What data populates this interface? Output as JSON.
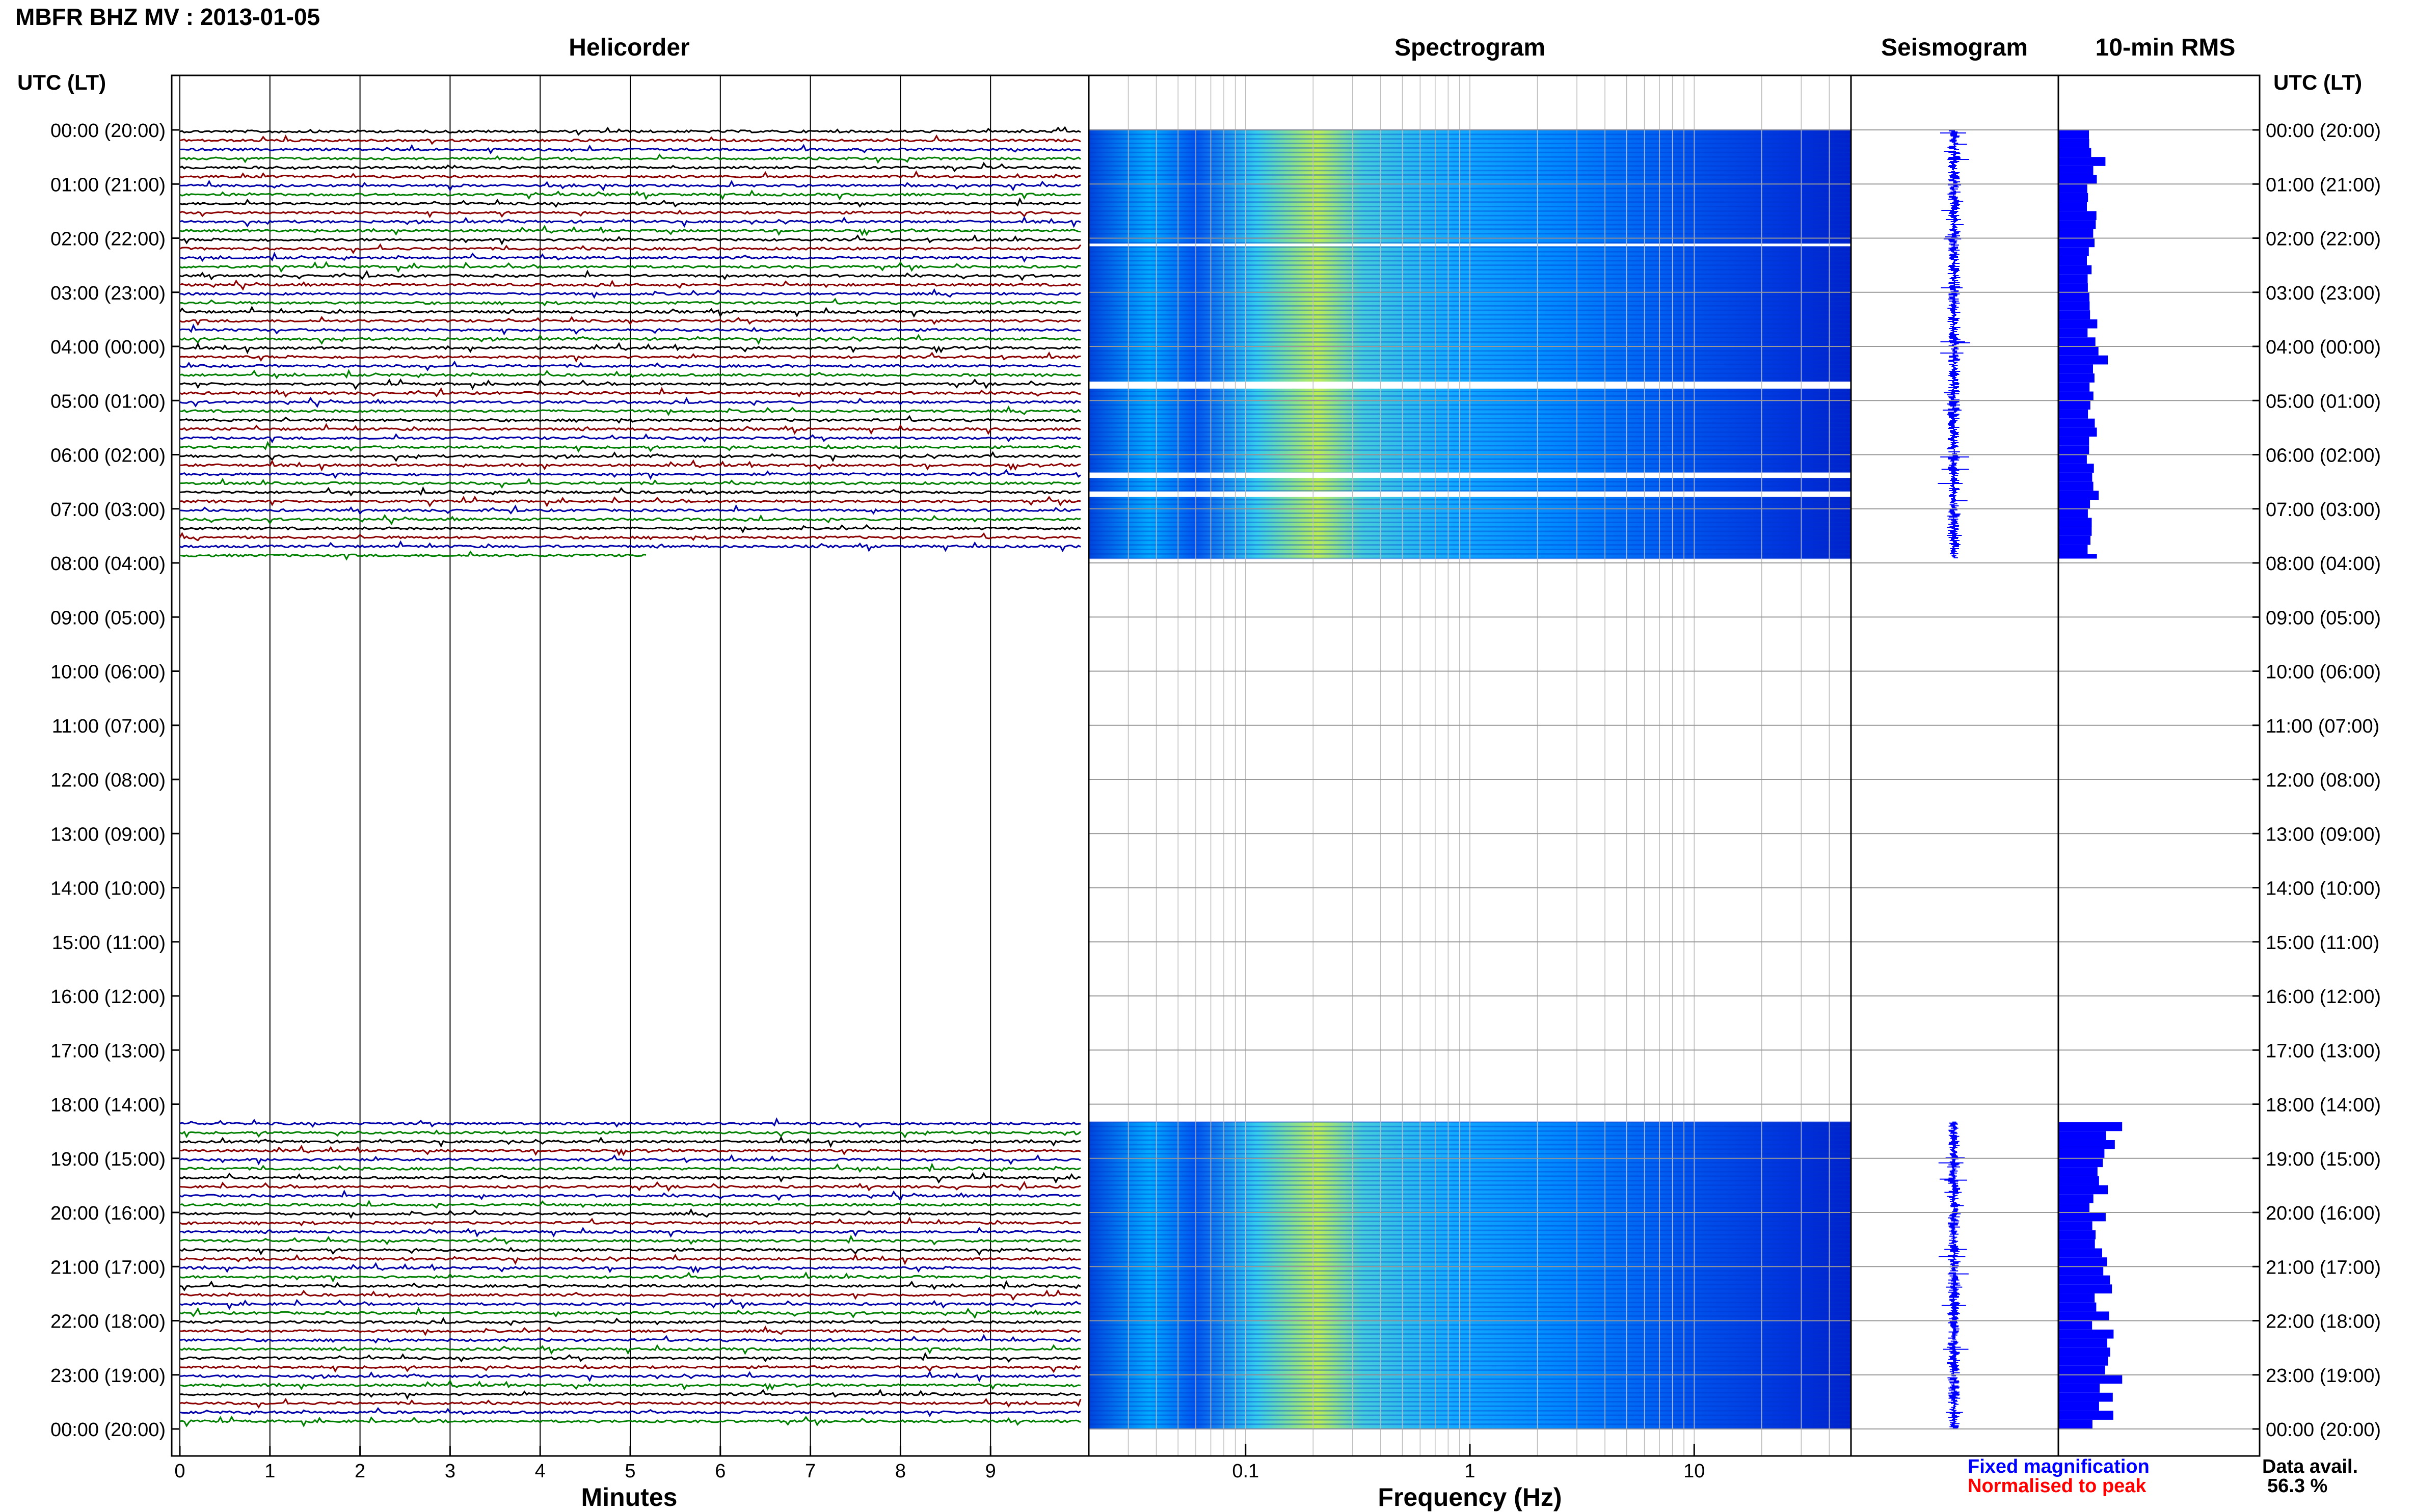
{
  "title": "MBFR BHZ MV : 2013-01-05",
  "panels": {
    "helicorder": "Helicorder",
    "spectrogram": "Spectrogram",
    "seismogram": "Seismogram",
    "rms": "10-min RMS"
  },
  "axis_header": "UTC (LT)",
  "legend": {
    "fixed": "Fixed magnification",
    "fixed_color": "#0000ff",
    "normalised": "Normalised to peak",
    "normalised_color": "#ff0000",
    "avail_label": "Data avail.",
    "avail_value": "56.3 %"
  },
  "chart_data": {
    "type": "helicorder",
    "time_labels": [
      "00:00 (20:00)",
      "01:00 (21:00)",
      "02:00 (22:00)",
      "03:00 (23:00)",
      "04:00 (00:00)",
      "05:00 (01:00)",
      "06:00 (02:00)",
      "07:00 (03:00)",
      "08:00 (04:00)",
      "09:00 (05:00)",
      "10:00 (06:00)",
      "11:00 (07:00)",
      "12:00 (08:00)",
      "13:00 (09:00)",
      "14:00 (10:00)",
      "15:00 (11:00)",
      "16:00 (12:00)",
      "17:00 (13:00)",
      "18:00 (14:00)",
      "19:00 (15:00)",
      "20:00 (16:00)",
      "21:00 (17:00)",
      "22:00 (18:00)",
      "23:00 (19:00)",
      "00:00 (20:00)"
    ],
    "helicorder": {
      "xlabel": "Minutes",
      "xticks": [
        0,
        1,
        2,
        3,
        4,
        5,
        6,
        7,
        8,
        9
      ],
      "xlim": [
        0,
        10
      ],
      "trace_colors": [
        "#000000",
        "#8b0000",
        "#0000aa",
        "#008000"
      ],
      "data_segments_hours": [
        [
          0.0,
          7.92
        ],
        [
          18.33,
          24.0
        ]
      ]
    },
    "spectrogram": {
      "xlabel": "Frequency (Hz)",
      "xscale": "log",
      "xlim": [
        0.02,
        50
      ],
      "xticks": [
        0.1,
        1,
        10
      ],
      "xtick_labels": [
        "0.1",
        "1",
        "10"
      ],
      "colormap": [
        "#0000cc",
        "#0055ff",
        "#00aaff",
        "#33ddee",
        "#ccee44"
      ]
    },
    "seismogram": {
      "color": "#0000ff"
    },
    "rms": {
      "color": "#0000ff",
      "interval_minutes": 10
    }
  }
}
